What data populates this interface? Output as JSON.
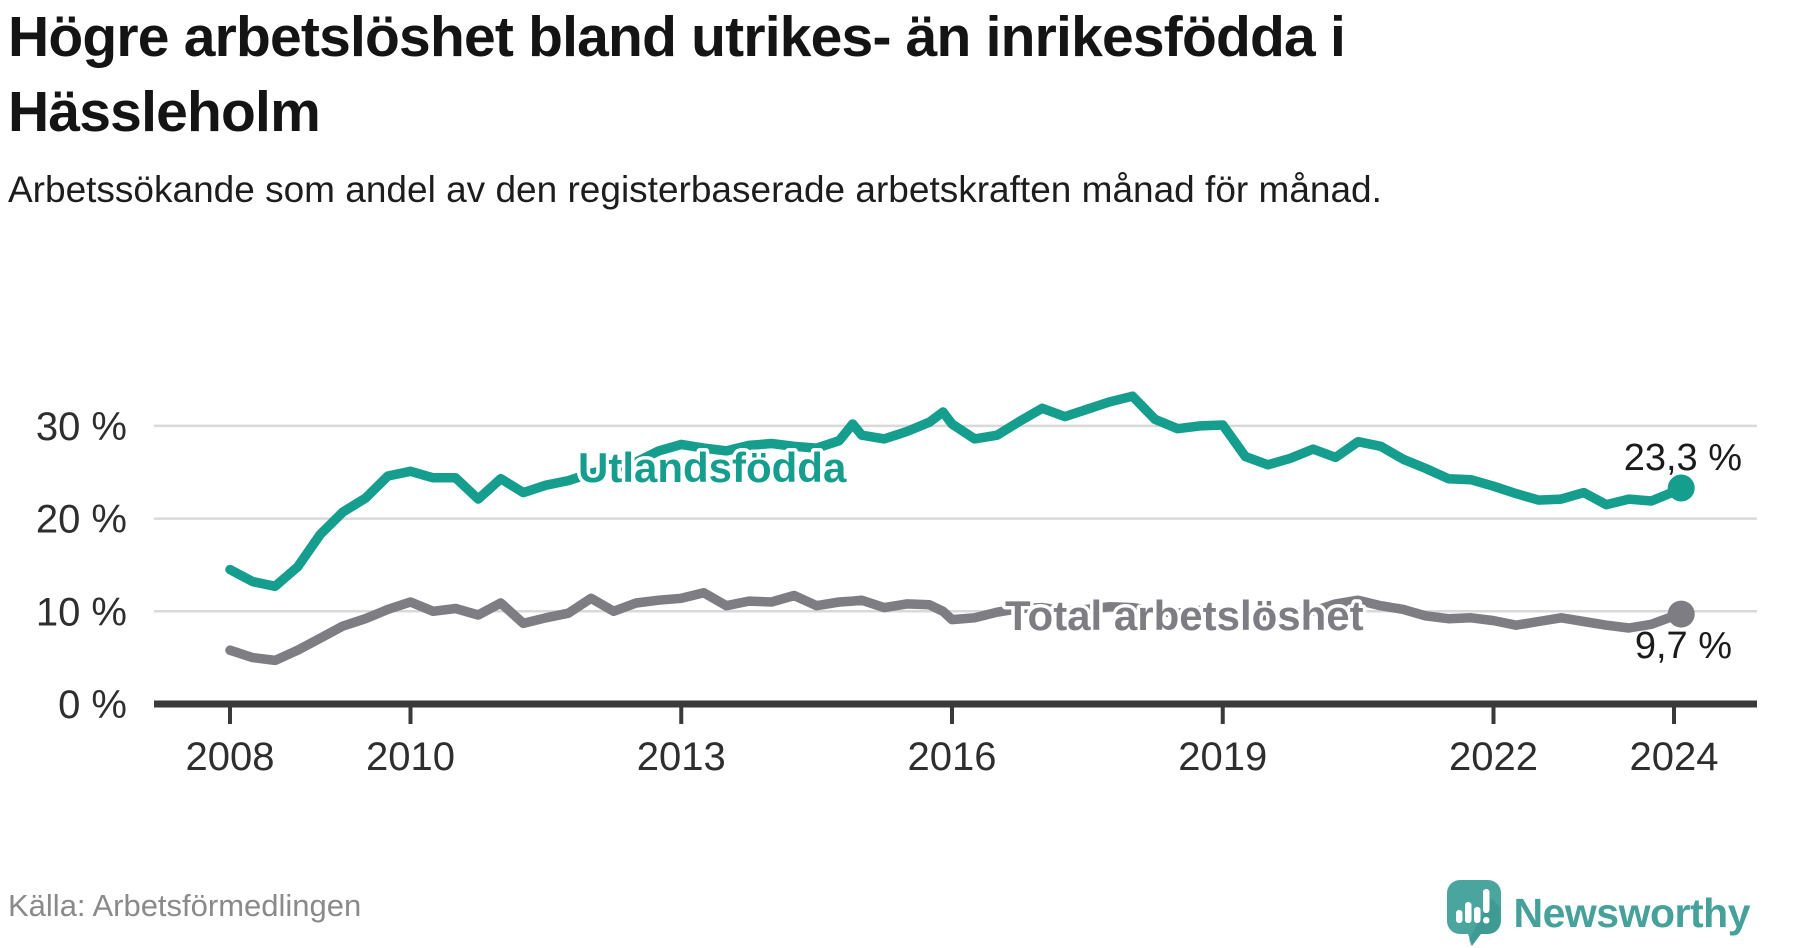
{
  "header": {
    "title": "Högre arbetslöshet bland utrikes- än inrikesfödda i Hässleholm",
    "subtitle": "Arbetssökande som andel av den registerbaserade arbetskraften månad för månad."
  },
  "footer": {
    "source": "Källa: Arbetsförmedlingen",
    "brand": "Newsworthy",
    "brand_color": "#45a19a",
    "logo_color": "#4ba59f",
    "logo_shadow_color": "#2f8d86"
  },
  "chart_data": {
    "type": "line",
    "title": "Högre arbetslöshet bland utrikes- än inrikesfödda i Hässleholm",
    "subtitle": "Arbetssökande som andel av den registerbaserade arbetskraften månad för månad.",
    "xlabel": "",
    "ylabel": "",
    "grid": "horizontal",
    "legend_position": "inline-labels",
    "xlim": [
      2007.75,
      2024.6
    ],
    "ylim": [
      0,
      34
    ],
    "x_axis": {
      "ticks": [
        {
          "value": 2008,
          "label": "2008"
        },
        {
          "value": 2010,
          "label": "2010"
        },
        {
          "value": 2013,
          "label": "2013"
        },
        {
          "value": 2016,
          "label": "2016"
        },
        {
          "value": 2019,
          "label": "2019"
        },
        {
          "value": 2022,
          "label": "2022"
        },
        {
          "value": 2024,
          "label": "2024"
        }
      ]
    },
    "y_axis": {
      "ticks": [
        {
          "value": 0,
          "label": "0 %"
        },
        {
          "value": 10,
          "label": "10 %"
        },
        {
          "value": 20,
          "label": "20 %"
        },
        {
          "value": 30,
          "label": "30 %"
        }
      ]
    },
    "x": [
      2008,
      2008.25,
      2008.5,
      2008.75,
      2009,
      2009.25,
      2009.5,
      2009.75,
      2010,
      2010.25,
      2010.5,
      2010.75,
      2011,
      2011.25,
      2011.5,
      2011.75,
      2012,
      2012.25,
      2012.5,
      2012.75,
      2013,
      2013.25,
      2013.5,
      2013.75,
      2014,
      2014.25,
      2014.5,
      2014.75,
      2014.9,
      2015,
      2015.25,
      2015.5,
      2015.75,
      2015.9,
      2016,
      2016.25,
      2016.5,
      2016.75,
      2017,
      2017.25,
      2017.5,
      2017.75,
      2018,
      2018.25,
      2018.5,
      2018.75,
      2019,
      2019.25,
      2019.5,
      2019.75,
      2020,
      2020.25,
      2020.5,
      2020.75,
      2021,
      2021.25,
      2021.5,
      2021.75,
      2022,
      2022.25,
      2022.5,
      2022.75,
      2023,
      2023.25,
      2023.5,
      2023.75,
      2024,
      2024.08
    ],
    "series": [
      {
        "name": "Utlandsfödda",
        "color": "#159e8e",
        "end_label": "23,3 %",
        "end_value": 23.3,
        "values": [
          14.5,
          13.2,
          12.7,
          14.8,
          18.3,
          20.7,
          22.2,
          24.6,
          25.1,
          24.4,
          24.4,
          22.1,
          24.3,
          22.8,
          23.6,
          24.1,
          24.9,
          25.4,
          26.1,
          27.3,
          28.0,
          27.6,
          27.3,
          27.9,
          28.1,
          27.8,
          27.6,
          28.4,
          30.2,
          29.0,
          28.6,
          29.4,
          30.4,
          31.5,
          30.2,
          28.6,
          29.0,
          30.5,
          31.9,
          31.0,
          31.8,
          32.6,
          33.2,
          30.7,
          29.7,
          30.0,
          30.1,
          26.7,
          25.8,
          26.5,
          27.5,
          26.6,
          28.3,
          27.8,
          26.4,
          25.4,
          24.3,
          24.2,
          23.5,
          22.7,
          22.0,
          22.1,
          22.8,
          21.5,
          22.1,
          21.9,
          22.9,
          23.3
        ]
      },
      {
        "name": "Total arbetslöshet",
        "color": "#7d7d83",
        "end_label": "9,7 %",
        "end_value": 9.7,
        "values": [
          5.8,
          5.0,
          4.7,
          5.8,
          7.1,
          8.4,
          9.2,
          10.2,
          11.0,
          10.0,
          10.3,
          9.6,
          10.9,
          8.7,
          9.3,
          9.8,
          11.4,
          10.0,
          10.9,
          11.2,
          11.4,
          12.0,
          10.6,
          11.1,
          11.0,
          11.7,
          10.6,
          11.0,
          11.1,
          11.2,
          10.4,
          10.8,
          10.7,
          10.0,
          9.1,
          9.3,
          9.9,
          10.3,
          10.4,
          10.0,
          10.2,
          10.5,
          10.4,
          10.0,
          9.8,
          10.1,
          10.0,
          9.6,
          9.5,
          9.8,
          10.0,
          10.8,
          11.2,
          10.6,
          10.2,
          9.5,
          9.2,
          9.3,
          9.0,
          8.5,
          8.9,
          9.3,
          8.9,
          8.5,
          8.2,
          8.6,
          9.5,
          9.7
        ]
      }
    ],
    "colors": {
      "grid": "#d9d9d9",
      "axis": "#3a3a3a",
      "tick_text": "#2e2e2e",
      "annotation_text": "#1b1b1b"
    }
  }
}
